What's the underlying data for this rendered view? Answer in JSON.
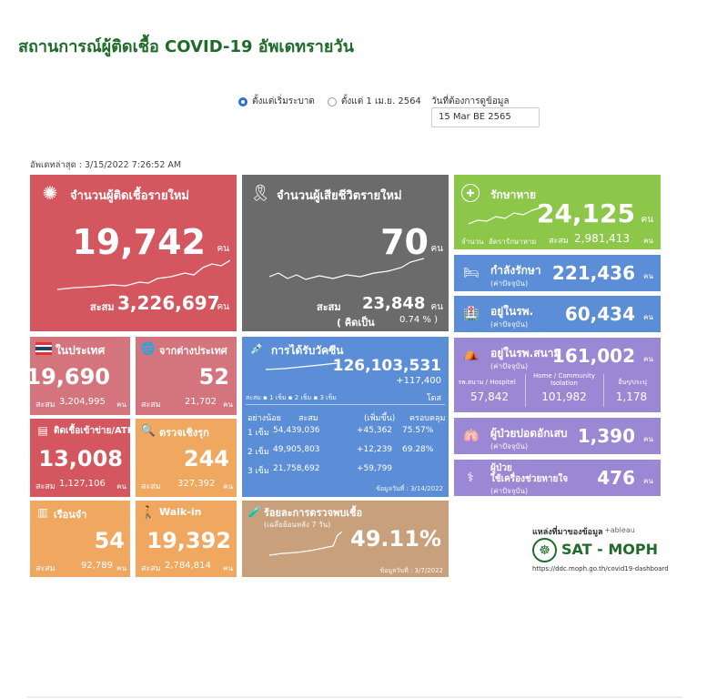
{
  "page": {
    "title": "สถานการณ์ผู้ติดเชื้อ COVID-19 อัพเดทรายวัน",
    "updated": "อัพเดทล่าสุด : 3/15/2022 7:26:52 AM"
  },
  "filter": {
    "option1": "ตั้งแต่เริ่มระบาด",
    "option2": "ตั้งแต่ 1 เม.ย. 2564",
    "date_label": "วันที่ต้องการดูข้อมูล",
    "date_value": "15 Mar BE 2565"
  },
  "unit": "คน",
  "acc": "สะสม",
  "colors": {
    "red": "#d4575f",
    "gray": "#6b6b6b",
    "green": "#8dc74a",
    "blue": "#5b8ed6",
    "pink": "#d4757e",
    "orange": "#f0a760",
    "purple": "#9b88d4",
    "tan": "#c9a07c",
    "accent": "#2f6fd6"
  },
  "new_cases": {
    "label": "จำนวนผู้ติดเชื้อรายใหม่",
    "value": "19,742",
    "acc_value": "3,226,697"
  },
  "deaths": {
    "label": "จำนวนผู้เสียชีวิตรายใหม่",
    "value": "70",
    "acc_value": "23,848",
    "pct_label": "( คิดเป็น",
    "pct": "0.74 % )"
  },
  "recovered": {
    "label": "รักษาหาย",
    "value": "24,125",
    "legend1": "จำนวน",
    "legend2": "อัตรารักษาหาย",
    "acc_value": "2,981,413"
  },
  "treating": {
    "label": "กำลังรักษา",
    "sub": "(ค่าปัจจุบัน)",
    "value": "221,436"
  },
  "hospital": {
    "label": "อยู่ในรพ.",
    "sub": "(ค่าปัจจุบัน)",
    "value": "60,434"
  },
  "field_hosp": {
    "label": "อยู่ในรพ.สนาม",
    "sub": "(ค่าปัจจุบัน)",
    "value": "161,002",
    "c1": "รพ.สนาม / Hospitel",
    "c2": "Home / Community Isolation",
    "c3": "อื่นๆ/ประปุ",
    "v1": "57,842",
    "v2": "101,982",
    "v3": "1,178"
  },
  "pneumonia": {
    "label": "ผู้ป่วยปอดอักเสบ",
    "sub": "(ค่าปัจจุบัน)",
    "value": "1,390"
  },
  "ventilator": {
    "label": "ผู้ป่วย",
    "label2": "ใช้เครื่องช่วยหายใจ",
    "sub": "(ค่าปัจจุบัน)",
    "value": "476"
  },
  "domestic": {
    "label": "ในประเทศ",
    "value": "19,690",
    "acc_value": "3,204,995"
  },
  "imported": {
    "label": "จากต่างประเทศ",
    "value": "52",
    "acc_value": "21,702"
  },
  "atk": {
    "label": "ติดเชื้อเข้าข่าย/ATK",
    "value": "13,008",
    "acc_value": "1,127,106"
  },
  "proactive": {
    "label": "ตรวจเชิงรุก",
    "value": "244",
    "acc_value": "327,392"
  },
  "prison": {
    "label": "เรือนจำ",
    "value": "54",
    "acc_value": "92,789"
  },
  "walkin": {
    "label": "Walk-in",
    "value": "19,392",
    "acc_value": "2,784,814"
  },
  "vaccine": {
    "label": "การได้รับวัคซีน",
    "value": "126,103,531",
    "increase": "+117,400",
    "unit2": "โดส",
    "legend": "สะสม ▪ 1 เข็ม ▪ 2 เข็ม ▪ 3 เข็ม",
    "h1": "อย่างน้อย",
    "h2": "สะสม",
    "h3": "(เพิ่มขึ้น)",
    "h4": "ครอบคลุม",
    "rows": [
      {
        "dose": "1 เข็ม",
        "acc": "54,439,036",
        "inc": "+45,362",
        "cov": "75.57%"
      },
      {
        "dose": "2 เข็ม",
        "acc": "49,905,803",
        "inc": "+12,239",
        "cov": "69.28%"
      },
      {
        "dose": "3 เข็ม",
        "acc": "21,758,692",
        "inc": "+59,799",
        "cov": ""
      }
    ],
    "asof": "ข้อมูลวันที่ : 3/14/2022"
  },
  "positivity": {
    "label": "ร้อยละการตรวจพบเชื้อ",
    "sub": "(เฉลี่ยย้อนหลัง 7 วัน)",
    "value": "49.11%",
    "asof": "ข้อมูลวันที่ : 3/7/2022"
  },
  "source": {
    "label": "แหล่งที่มาของข้อมูล",
    "tableau": "+ableau",
    "org": "SAT - MOPH",
    "url": "https://ddc.moph.go.th/covid19-dashboard"
  }
}
